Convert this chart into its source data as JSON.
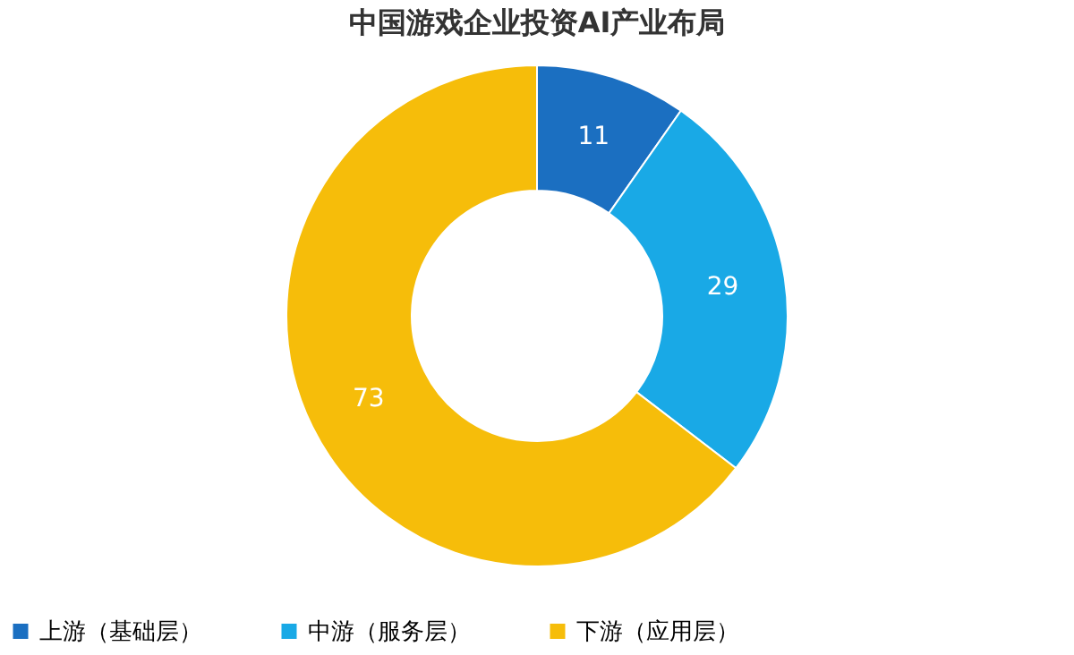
{
  "chart_data": {
    "type": "donut",
    "title": "中国游戏企业投资AI产业布局",
    "categories": [
      "上游（基础层）",
      "中游（服务层）",
      "下游（应用层）"
    ],
    "values": [
      11,
      29,
      73
    ],
    "colors": [
      "#1b6fc1",
      "#19a9e6",
      "#f6bd0a"
    ],
    "data_labels": true,
    "legend": "bottom"
  }
}
